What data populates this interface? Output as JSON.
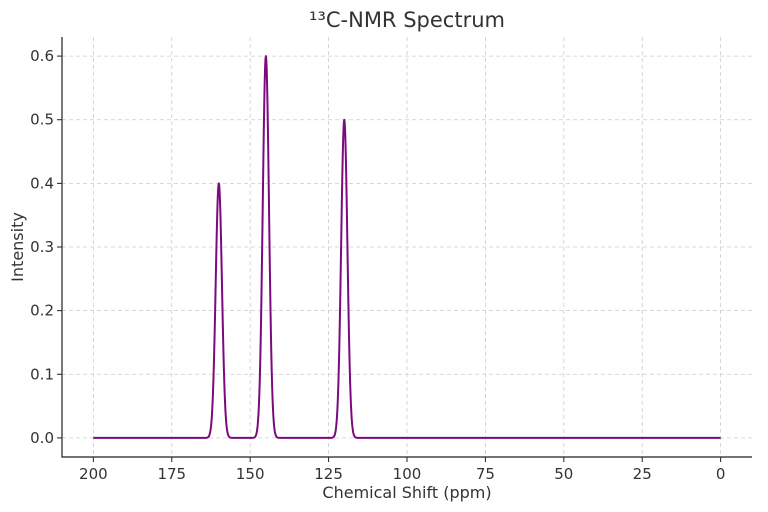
{
  "chart_data": {
    "type": "line",
    "title": "¹³C-NMR Spectrum",
    "xlabel": "Chemical Shift (ppm)",
    "ylabel": "Intensity",
    "xlim": [
      210,
      -10
    ],
    "ylim": [
      -0.03,
      0.63
    ],
    "x_reversed": true,
    "x_ticks": [
      200,
      175,
      150,
      125,
      100,
      75,
      50,
      25,
      0
    ],
    "y_ticks": [
      0.0,
      0.1,
      0.2,
      0.3,
      0.4,
      0.5,
      0.6
    ],
    "y_tick_labels": [
      "0.0",
      "0.1",
      "0.2",
      "0.3",
      "0.4",
      "0.5",
      "0.6"
    ],
    "grid": true,
    "color": "#7b0a7f",
    "x_range": [
      200,
      0
    ],
    "peaks": [
      {
        "center": 160,
        "height": 0.4,
        "width": 1.0
      },
      {
        "center": 145,
        "height": 0.6,
        "width": 1.0
      },
      {
        "center": 120,
        "height": 0.5,
        "width": 1.0
      }
    ]
  }
}
